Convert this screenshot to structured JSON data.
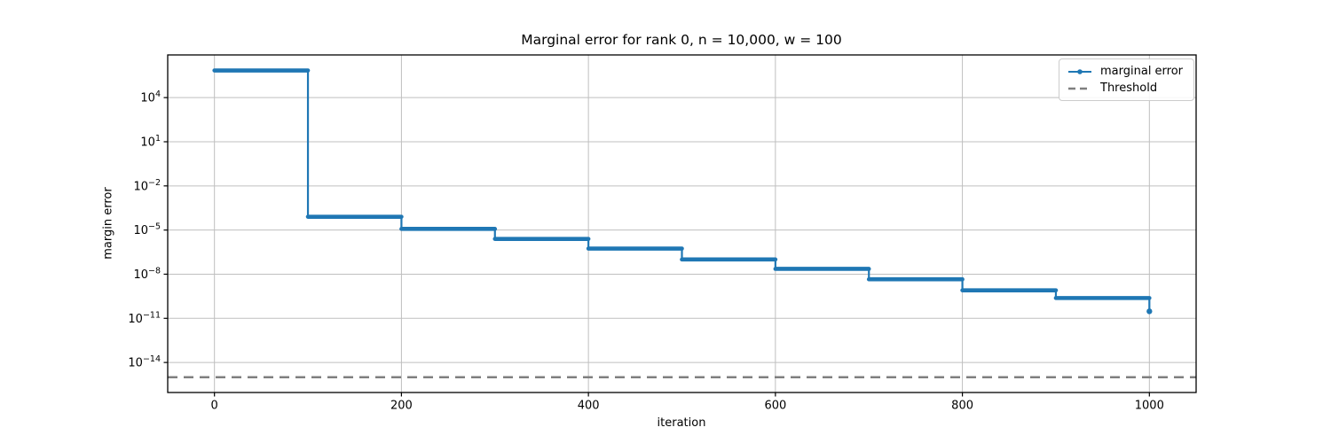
{
  "chart_data": {
    "type": "line",
    "subtype": "step-log-y",
    "title": "Marginal error for rank 0, n = 10,000, w = 100",
    "xlabel": "iteration",
    "ylabel": "margin error",
    "grid": true,
    "legend_position": "upper right",
    "xlim": [
      -50,
      1050
    ],
    "ylog10_lim": [
      -16.04,
      6.9
    ],
    "xticks": [
      0,
      200,
      400,
      600,
      800,
      1000
    ],
    "ytick_exponents": [
      4,
      1,
      -2,
      -5,
      -8,
      -11,
      -14
    ],
    "colors": {
      "series": "#1f77b4",
      "threshold": "#7f7f7f",
      "grid": "#bfbfbf",
      "spine": "#000000",
      "background": "#ffffff"
    },
    "legend": [
      {
        "label": "marginal error",
        "color": "#1f77b4",
        "style": "solid-line-dot-marker"
      },
      {
        "label": "Threshold",
        "color": "#7f7f7f",
        "style": "dashed-line"
      }
    ],
    "series": [
      {
        "name": "marginal error",
        "color": "#1f77b4",
        "marker": "dot-every-iteration",
        "steps": [
          {
            "x_start": 0,
            "x_end": 100,
            "value": 700000.0
          },
          {
            "x_start": 100,
            "x_end": 200,
            "value": 8e-05
          },
          {
            "x_start": 200,
            "x_end": 300,
            "value": 1.2e-05
          },
          {
            "x_start": 300,
            "x_end": 400,
            "value": 2.5e-06
          },
          {
            "x_start": 400,
            "x_end": 500,
            "value": 5.5e-07
          },
          {
            "x_start": 500,
            "x_end": 600,
            "value": 1e-07
          },
          {
            "x_start": 600,
            "x_end": 700,
            "value": 2.3e-08
          },
          {
            "x_start": 700,
            "x_end": 800,
            "value": 4.5e-09
          },
          {
            "x_start": 800,
            "x_end": 900,
            "value": 8e-10
          },
          {
            "x_start": 900,
            "x_end": 1000,
            "value": 2.4e-10
          }
        ],
        "final_point": {
          "x": 1000,
          "value": 3e-11
        }
      },
      {
        "name": "Threshold",
        "color": "#7f7f7f",
        "style": "dashed-horizontal-line",
        "value": 1e-15
      }
    ]
  }
}
